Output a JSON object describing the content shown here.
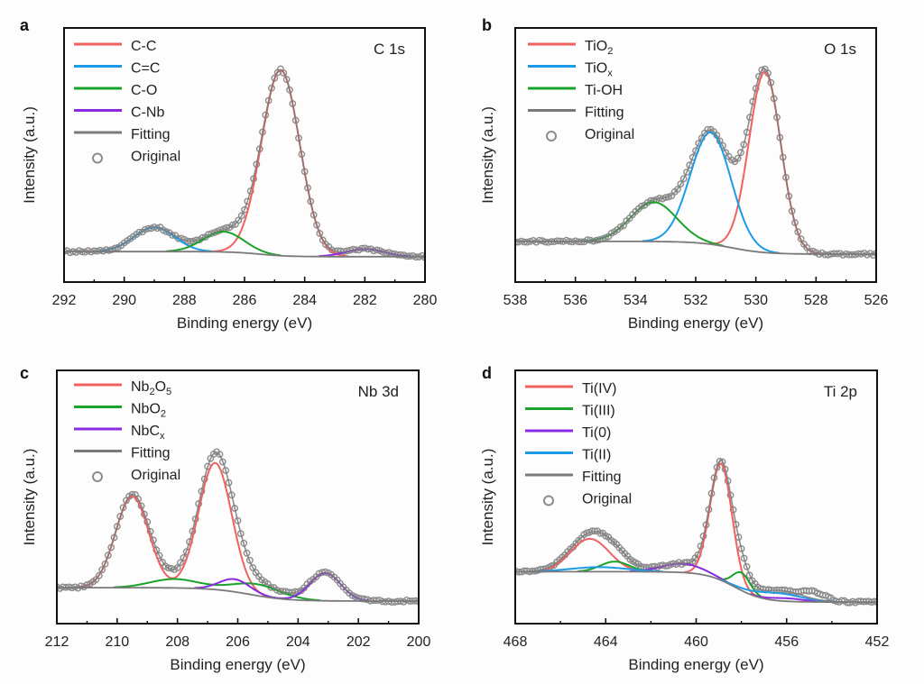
{
  "figure": {
    "description": "XPS high-resolution spectra with peak fitting"
  },
  "chart_data": [
    {
      "type": "line",
      "panel": "a",
      "region_label": "C 1s",
      "xlabel": "Binding energy (eV)",
      "ylabel": "Intensity (a.u.)",
      "xlim": [
        292,
        280
      ],
      "ylim": [
        0,
        1
      ],
      "x_ticks": [
        292,
        290,
        288,
        286,
        284,
        282,
        280
      ],
      "y_ticks": [],
      "grid": false,
      "legend_position": "top-left",
      "baseline": {
        "left": 0.12,
        "right": 0.1,
        "step_center": 285.5,
        "step_width": 1.2
      },
      "components": [
        {
          "name": "C-C",
          "label": "C-C",
          "color": "#f0615f",
          "peaks": [
            {
              "center": 284.8,
              "height": 0.73,
              "fwhm": 1.5
            }
          ]
        },
        {
          "name": "C=C",
          "label": "C=C",
          "color": "#1e9be8",
          "peaks": [
            {
              "center": 289.0,
              "height": 0.095,
              "fwhm": 1.6
            }
          ]
        },
        {
          "name": "C-O",
          "label": "C-O",
          "color": "#1aa329",
          "peaks": [
            {
              "center": 286.7,
              "height": 0.08,
              "fwhm": 1.6
            }
          ]
        },
        {
          "name": "C-Nb",
          "label": "C-Nb",
          "color": "#8a2be2",
          "peaks": [
            {
              "center": 282.0,
              "height": 0.03,
              "fwhm": 1.5
            }
          ]
        }
      ],
      "legend": [
        {
          "label": "C-C",
          "kind": "line",
          "color": "#f0615f"
        },
        {
          "label": "C=C",
          "kind": "line",
          "color": "#1e9be8"
        },
        {
          "label": "C-O",
          "kind": "line",
          "color": "#1aa329"
        },
        {
          "label": "C-Nb",
          "kind": "line",
          "color": "#8a2be2"
        },
        {
          "label": "Fitting",
          "kind": "line",
          "color": "#7a7a7a"
        },
        {
          "label": "Original",
          "kind": "marker",
          "color": "#8c8c8c"
        }
      ],
      "original_step_ev": 0.1,
      "original_color": "#8c8c8c",
      "fitting_color": "#7a7a7a"
    },
    {
      "type": "line",
      "panel": "b",
      "region_label": "O 1s",
      "xlabel": "Binding energy (eV)",
      "ylabel": "Intensity (a.u.)",
      "xlim": [
        538,
        526
      ],
      "ylim": [
        0,
        1
      ],
      "x_ticks": [
        538,
        536,
        534,
        532,
        530,
        528,
        526
      ],
      "y_ticks": [],
      "grid": false,
      "legend_position": "top-left",
      "baseline": {
        "left": 0.16,
        "right": 0.11,
        "step_center": 530.8,
        "step_width": 1.4
      },
      "components": [
        {
          "name": "TiO2",
          "label": "TiO",
          "label_sub": "2",
          "color": "#f0615f",
          "peaks": [
            {
              "center": 529.7,
              "height": 0.71,
              "fwhm": 1.25
            }
          ]
        },
        {
          "name": "TiOx",
          "label": "TiO",
          "label_sub": "x",
          "color": "#1e9be8",
          "peaks": [
            {
              "center": 531.5,
              "height": 0.44,
              "fwhm": 1.6
            }
          ]
        },
        {
          "name": "Ti-OH",
          "label": "Ti-OH",
          "label_sub": "",
          "color": "#1aa329",
          "peaks": [
            {
              "center": 533.4,
              "height": 0.155,
              "fwhm": 1.8
            }
          ]
        }
      ],
      "legend": [
        {
          "label": "TiO",
          "sub": "2",
          "kind": "line",
          "color": "#f0615f"
        },
        {
          "label": "TiO",
          "sub": "x",
          "kind": "line",
          "color": "#1e9be8"
        },
        {
          "label": "Ti-OH",
          "sub": "",
          "kind": "line",
          "color": "#1aa329"
        },
        {
          "label": "Fitting",
          "sub": "",
          "kind": "line",
          "color": "#7a7a7a"
        },
        {
          "label": "Original",
          "sub": "",
          "kind": "marker",
          "color": "#8c8c8c"
        }
      ],
      "original_step_ev": 0.1,
      "original_color": "#8c8c8c",
      "fitting_color": "#7a7a7a"
    },
    {
      "type": "line",
      "panel": "c",
      "region_label": "Nb 3d",
      "xlabel": "Binding energy (eV)",
      "ylabel": "Intensity (a.u.)",
      "xlim": [
        212,
        200
      ],
      "ylim": [
        0,
        1
      ],
      "x_ticks": [
        212,
        210,
        208,
        206,
        204,
        202,
        200
      ],
      "y_ticks": [],
      "grid": false,
      "legend_position": "top-left",
      "baseline": {
        "left": 0.142,
        "right": 0.089,
        "step_center": 205.6,
        "step_width": 1.6
      },
      "components": [
        {
          "name": "Nb2O5",
          "label": "Nb",
          "label_sub": "2",
          "label2": "O",
          "label_sub2": "5",
          "color": "#f0615f",
          "peaks": [
            {
              "center": 209.5,
              "height": 0.36,
              "fwhm": 1.3
            },
            {
              "center": 206.75,
              "height": 0.5,
              "fwhm": 1.3
            }
          ]
        },
        {
          "name": "NbO2",
          "label": "NbO",
          "label_sub": "2",
          "color": "#1aa329",
          "peaks": [
            {
              "center": 208.1,
              "height": 0.035,
              "fwhm": 1.9
            },
            {
              "center": 205.35,
              "height": 0.045,
              "fwhm": 1.9
            }
          ]
        },
        {
          "name": "NbCx",
          "label": "NbC",
          "label_sub": "x",
          "color": "#8a2be2",
          "peaks": [
            {
              "center": 206.1,
              "height": 0.05,
              "fwhm": 1.2
            },
            {
              "center": 203.1,
              "height": 0.11,
              "fwhm": 1.2
            }
          ]
        }
      ],
      "legend": [
        {
          "label": "Nb",
          "sub": "2",
          "label2": "O",
          "sub2": "5",
          "kind": "line",
          "color": "#f0615f"
        },
        {
          "label": "NbO",
          "sub": "2",
          "kind": "line",
          "color": "#1aa329"
        },
        {
          "label": "NbC",
          "sub": "x",
          "kind": "line",
          "color": "#8a2be2"
        },
        {
          "label": "Fitting",
          "sub": "",
          "kind": "line",
          "color": "#7a7a7a"
        },
        {
          "label": "Original",
          "sub": "",
          "kind": "marker",
          "color": "#8c8c8c"
        }
      ],
      "original_step_ev": 0.1,
      "original_color": "#8c8c8c",
      "fitting_color": "#7a7a7a"
    },
    {
      "type": "line",
      "panel": "d",
      "region_label": "Ti 2p",
      "xlabel": "Binding energy (eV)",
      "ylabel": "Intensity (a.u.)",
      "xlim": [
        468,
        452
      ],
      "ylim": [
        0,
        1
      ],
      "x_ticks": [
        468,
        464,
        460,
        456,
        452
      ],
      "x_minor_ticks": [
        466,
        462,
        458,
        454
      ],
      "y_ticks": [],
      "grid": false,
      "legend_position": "top-left",
      "baseline": {
        "left": 0.205,
        "right": 0.085,
        "step_center": 458.3,
        "step_width": 1.6
      },
      "components": [
        {
          "name": "Ti(IV)",
          "label": "Ti(IV)",
          "color": "#f0615f",
          "peaks": [
            {
              "center": 458.9,
              "height": 0.46,
              "fwhm": 1.15
            },
            {
              "center": 464.7,
              "height": 0.13,
              "fwhm": 2.0
            }
          ]
        },
        {
          "name": "Ti(III)",
          "label": "Ti(III)",
          "color": "#1aa329",
          "peaks": [
            {
              "center": 458.0,
              "height": 0.07,
              "fwhm": 0.9
            },
            {
              "center": 463.6,
              "height": 0.04,
              "fwhm": 1.5
            }
          ]
        },
        {
          "name": "Ti(0)",
          "label": "Ti(0)",
          "color": "#8a2be2",
          "peaks": [
            {
              "center": 460.6,
              "height": 0.035,
              "fwhm": 2.2
            },
            {
              "center": 456.0,
              "height": 0.012,
              "fwhm": 1.8
            }
          ]
        },
        {
          "name": "Ti(II)",
          "label": "Ti(II)",
          "color": "#1e9be8",
          "peaks": [
            {
              "center": 456.4,
              "height": 0.03,
              "fwhm": 2.5
            },
            {
              "center": 464.3,
              "height": 0.018,
              "fwhm": 3.0
            }
          ]
        }
      ],
      "extra_original_peaks": [
        {
          "center": 454.8,
          "height": 0.03,
          "fwhm": 1.2
        }
      ],
      "legend": [
        {
          "label": "Ti(IV)",
          "kind": "line",
          "color": "#f0615f"
        },
        {
          "label": "Ti(III)",
          "kind": "line",
          "color": "#1aa329"
        },
        {
          "label": "Ti(0)",
          "kind": "line",
          "color": "#8a2be2"
        },
        {
          "label": "Ti(II)",
          "kind": "line",
          "color": "#1e9be8"
        },
        {
          "label": "Fitting",
          "kind": "line",
          "color": "#7a7a7a"
        },
        {
          "label": "Original",
          "kind": "marker",
          "color": "#8c8c8c"
        }
      ],
      "original_step_ev": 0.12,
      "original_color": "#8c8c8c",
      "fitting_color": "#7a7a7a"
    }
  ]
}
